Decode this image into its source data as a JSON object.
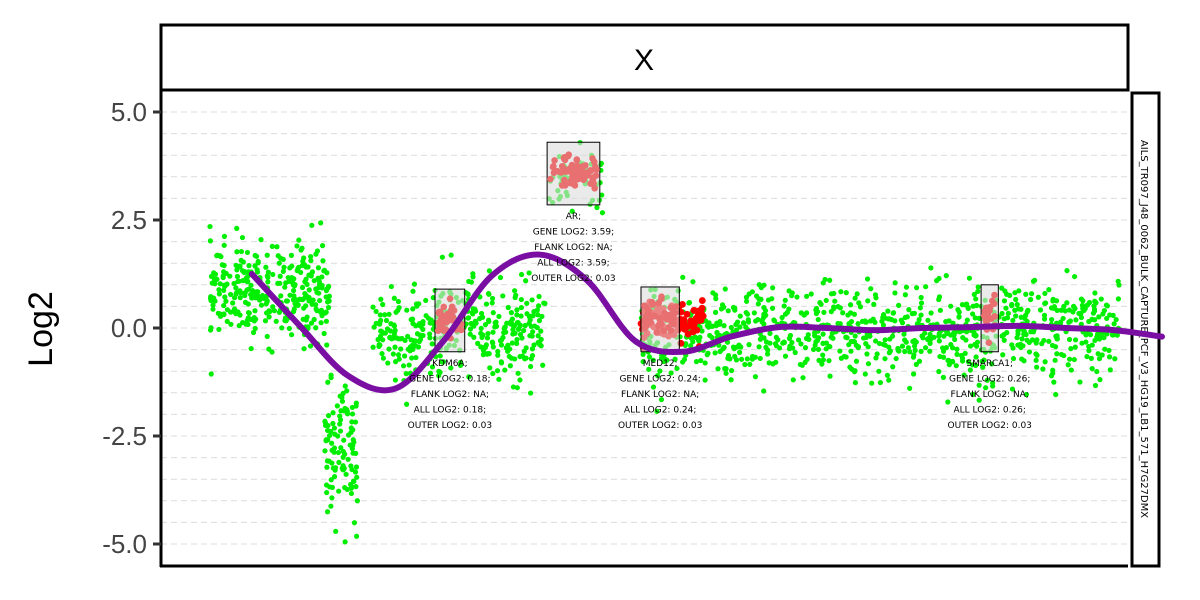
{
  "chart_data": {
    "type": "scatter",
    "title": "",
    "facet_label": "X",
    "side_label": "AILS_TR097_J48_0062_BULK_CAPTURE_PCF_V3_HG19_LB1_571_H7G27DMX",
    "ylabel": "Log2",
    "ylim": [
      -5,
      5
    ],
    "yticks": [
      5.0,
      2.5,
      0.0,
      -2.5,
      -5.0
    ],
    "ytick_labels": [
      "5.0",
      "2.5",
      "0.0",
      "-2.5",
      "-5.0"
    ],
    "grid": true,
    "point_colors": {
      "probe": "#00ee00",
      "flank": "#ff0000",
      "gene": "#e87070"
    },
    "smooth_color": "#7a0ea3",
    "smooth_curve": {
      "x": [
        0.05,
        0.1,
        0.15,
        0.2,
        0.25,
        0.3,
        0.35,
        0.4,
        0.45,
        0.5,
        0.55,
        0.6,
        0.65,
        0.7,
        0.75,
        0.8,
        0.85,
        0.9,
        0.95,
        1.0
      ],
      "y": [
        1.25,
        0.05,
        -1.1,
        -1.4,
        -0.3,
        1.2,
        1.7,
        1.1,
        -0.3,
        -0.55,
        -0.2,
        0.02,
        0.0,
        -0.05,
        0.0,
        0.02,
        0.05,
        0.0,
        -0.05,
        -0.2
      ]
    },
    "genes": [
      {
        "name": "KDM6A",
        "x_range": [
          0.285,
          0.316
        ],
        "y_range": [
          -0.55,
          0.9
        ],
        "log2": 0.18,
        "lines": [
          "KDM6A;",
          "GENE LOG2: 0.18;",
          "FLANK LOG2: NA;",
          "ALL LOG2: 0.18;",
          "OUTER LOG2: 0.03"
        ]
      },
      {
        "name": "AR",
        "x_range": [
          0.402,
          0.457
        ],
        "y_range": [
          2.85,
          4.3
        ],
        "log2": 3.59,
        "lines": [
          "AR;",
          "GENE LOG2: 3.59;",
          "FLANK LOG2: NA;",
          "ALL LOG2: 3.59;",
          "OUTER LOG2: 0.03"
        ]
      },
      {
        "name": "MED12",
        "x_range": [
          0.5,
          0.54
        ],
        "y_range": [
          -0.55,
          0.95
        ],
        "log2": 0.24,
        "lines": [
          "MED12;",
          "GENE LOG2: 0.24;",
          "FLANK LOG2: NA;",
          "ALL LOG2: 0.24;",
          "OUTER LOG2: 0.03"
        ]
      },
      {
        "name": "SMARCA1",
        "x_range": [
          0.855,
          0.873
        ],
        "y_range": [
          -0.55,
          1.0
        ],
        "log2": 0.26,
        "lines": [
          "SMARCA1;",
          "GENE LOG2: 0.26;",
          "FLANK LOG2: NA;",
          "ALL LOG2: 0.26;",
          "OUTER LOG2: 0.03"
        ]
      }
    ],
    "probe_segments": [
      {
        "x_range": [
          0.05,
          0.175
        ],
        "mean": 0.85,
        "sd": 0.55,
        "n": 320
      },
      {
        "x_range": [
          0.17,
          0.205
        ],
        "mean": -2.9,
        "sd": 0.75,
        "n": 110
      },
      {
        "x_range": [
          0.22,
          0.28
        ],
        "mean": -0.2,
        "sd": 0.55,
        "n": 110
      },
      {
        "x_range": [
          0.28,
          0.4
        ],
        "mean": -0.05,
        "sd": 0.55,
        "n": 250
      },
      {
        "x_range": [
          0.4,
          0.46
        ],
        "mean": 3.4,
        "sd": 0.35,
        "n": 45
      },
      {
        "x_range": [
          0.5,
          1.0
        ],
        "mean": -0.1,
        "sd": 0.55,
        "n": 900
      }
    ],
    "flank_points": {
      "x_range": [
        0.5,
        0.565
      ],
      "mean": 0.15,
      "sd": 0.25,
      "n": 90
    }
  }
}
